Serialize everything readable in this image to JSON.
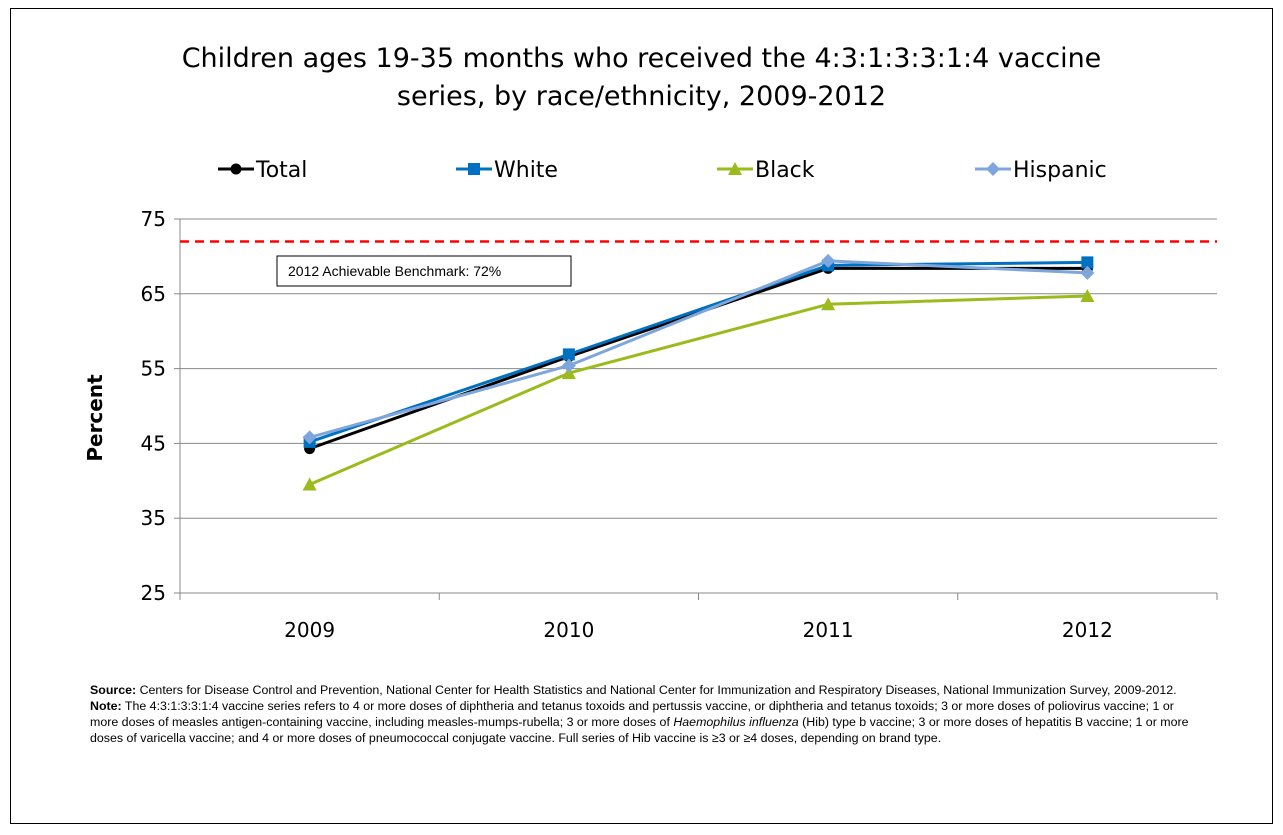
{
  "title_line1": "Children ages 19-35 months who received the 4:3:1:3:3:1:4 vaccine",
  "title_line2": "series, by race/ethnicity, 2009-2012",
  "benchmark_label": "2012 Achievable Benchmark: 72%",
  "footnotes": {
    "source_label": "Source:",
    "source_text": " Centers for Disease Control and Prevention, National Center for Health Statistics and National Center for Immunization and Respiratory Diseases, National Immunization Survey, 2009-2012.",
    "note_label": "Note:",
    "note_text_1": " The 4:3:1:3:3:1:4 vaccine series refers to 4 or more doses of diphtheria and tetanus toxoids and pertussis vaccine, or diphtheria and tetanus toxoids; 3 or more doses of poliovirus vaccine; 1 or more doses of measles antigen-containing vaccine, including measles-mumps-rubella; 3 or more doses of ",
    "note_italic": "Haemophilus influenza",
    "note_text_2": " (Hib) type b vaccine; 3 or more doses of hepatitis B vaccine; 1 or more doses of varicella vaccine; and 4 or more doses of pneumococcal conjugate vaccine. Full series of Hib vaccine is ≥3 or ≥4 doses, depending on brand type."
  },
  "chart_data": {
    "type": "line",
    "title": "Children ages 19-35 months who received the 4:3:1:3:3:1:4 vaccine series, by race/ethnicity, 2009-2012",
    "xlabel": "",
    "ylabel": "Percent",
    "categories": [
      "2009",
      "2010",
      "2011",
      "2012"
    ],
    "ylim": [
      25,
      75
    ],
    "yticks": [
      25,
      35,
      45,
      55,
      65,
      75
    ],
    "grid": true,
    "legend_position": "top",
    "benchmark": {
      "value": 72,
      "label": "2012 Achievable Benchmark: 72%",
      "color": "#ff0000"
    },
    "series": [
      {
        "name": "Total",
        "values": [
          44.3,
          56.6,
          68.4,
          68.4
        ],
        "color": "#000000",
        "marker": "circle"
      },
      {
        "name": "White",
        "values": [
          45.2,
          56.9,
          68.8,
          69.2
        ],
        "color": "#0070c0",
        "marker": "square"
      },
      {
        "name": "Black",
        "values": [
          39.5,
          54.4,
          63.6,
          64.7
        ],
        "color": "#9bbb1d",
        "marker": "triangle"
      },
      {
        "name": "Hispanic",
        "values": [
          45.8,
          55.4,
          69.4,
          67.8
        ],
        "color": "#7fa6dc",
        "marker": "diamond"
      }
    ]
  }
}
